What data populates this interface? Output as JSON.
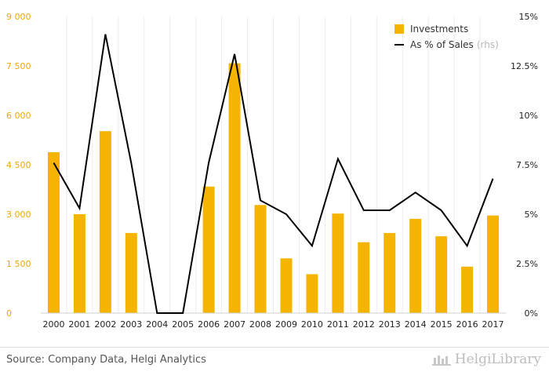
{
  "chart_data": {
    "type": "bar",
    "categories": [
      "2000",
      "2001",
      "2002",
      "2003",
      "2004",
      "2005",
      "2006",
      "2007",
      "2008",
      "2009",
      "2010",
      "2011",
      "2012",
      "2013",
      "2014",
      "2015",
      "2016",
      "2017"
    ],
    "series": [
      {
        "name": "Investments",
        "type": "bar",
        "axis": "left",
        "color": "#f5b400",
        "values": [
          4880,
          3000,
          5520,
          2430,
          0,
          0,
          3840,
          7580,
          3280,
          1660,
          1180,
          3020,
          2150,
          2430,
          2860,
          2330,
          1410,
          2960
        ]
      },
      {
        "name": "As % of Sales",
        "type": "line",
        "axis": "right",
        "color": "#000000",
        "values": [
          7.6,
          5.3,
          14.1,
          7.6,
          0.0,
          0.0,
          7.6,
          13.1,
          5.7,
          5.0,
          3.4,
          7.8,
          5.2,
          5.2,
          6.1,
          5.2,
          3.4,
          6.8
        ]
      }
    ],
    "ylim": [
      0,
      9000
    ],
    "y_ticks": [
      "0",
      "1 500",
      "3 000",
      "4 500",
      "6 000",
      "7 500",
      "9 000"
    ],
    "y2lim": [
      0,
      15
    ],
    "y2_ticks": [
      "0%",
      "2.5%",
      "5%",
      "7.5%",
      "10%",
      "12.5%",
      "15%"
    ],
    "legend": {
      "position": "top-right",
      "items": [
        "Investments",
        "As % of Sales"
      ],
      "note": "(rhs)"
    },
    "grid": "vertical"
  },
  "footer": {
    "source": "Source: Company Data, Helgi Analytics",
    "brand": "HelgiLibrary"
  }
}
